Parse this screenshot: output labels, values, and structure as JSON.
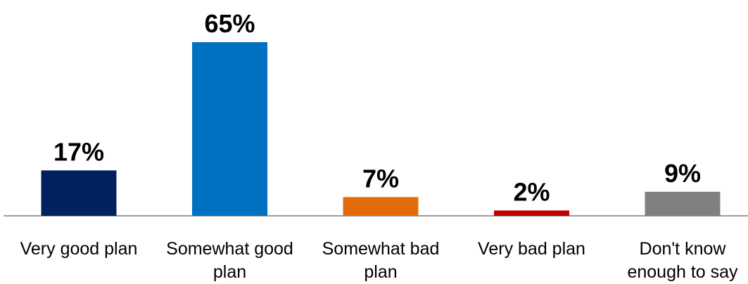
{
  "chart_data": {
    "type": "bar",
    "title": "",
    "xlabel": "",
    "ylabel": "",
    "ylim": [
      0,
      70
    ],
    "grid": false,
    "legend": "none",
    "categories": [
      [
        "Very good plan"
      ],
      [
        "Somewhat good",
        "plan"
      ],
      [
        "Somewhat bad",
        "plan"
      ],
      [
        "Very bad plan"
      ],
      [
        "Don't know",
        "enough to say"
      ]
    ],
    "values": [
      17,
      65,
      7,
      2,
      9
    ],
    "value_labels": [
      "17%",
      "65%",
      "7%",
      "2%",
      "9%"
    ],
    "colors": [
      "#002060",
      "#0070C0",
      "#E36C0A",
      "#C00000",
      "#808080"
    ],
    "baseline_color": "#7f7f7f"
  }
}
